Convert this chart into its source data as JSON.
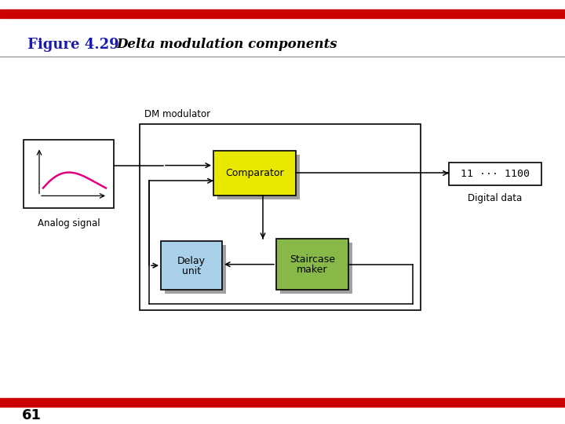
{
  "title_bold": "Figure 4.29",
  "title_italic": "Delta modulation components",
  "page_number": "61",
  "top_bar_color": "#cc0000",
  "bottom_bar_color": "#cc0000",
  "title_bold_color": "#1a1aaa",
  "title_italic_color": "#000000",
  "bg_color": "#ffffff",
  "comparator_color": "#e8e800",
  "delay_color": "#a8d0e8",
  "staircase_color": "#88b848",
  "analog_box_color": "#ffffff",
  "digital_box_color": "#ffffff",
  "analog_curve_color": "#e0007f",
  "arrow_color": "#000000",
  "box_edge_color": "#000000",
  "shadow_color": "#a0a0a0",
  "gray_line_color": "#888888"
}
